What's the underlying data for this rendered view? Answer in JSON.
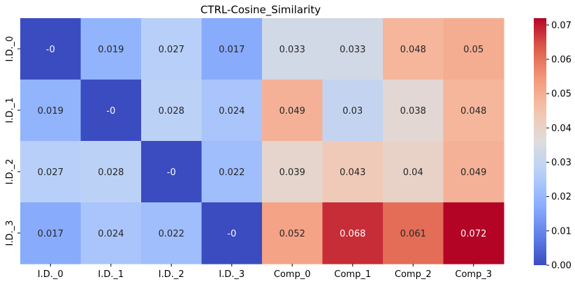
{
  "chart_data": {
    "type": "heatmap",
    "title": "CTRL-Cosine_Similarity",
    "xlabel": "",
    "ylabel": "",
    "x_categories": [
      "I.D._0",
      "I.D._1",
      "I.D._2",
      "I.D._3",
      "Comp_0",
      "Comp_1",
      "Comp_2",
      "Comp_3"
    ],
    "y_categories": [
      "I.D._0",
      "I.D._1",
      "I.D._2",
      "I.D._3"
    ],
    "values": [
      [
        0.0,
        0.019,
        0.027,
        0.017,
        0.033,
        0.033,
        0.048,
        0.05
      ],
      [
        0.019,
        0.0,
        0.028,
        0.024,
        0.049,
        0.03,
        0.038,
        0.048
      ],
      [
        0.027,
        0.028,
        0.0,
        0.022,
        0.039,
        0.043,
        0.04,
        0.049
      ],
      [
        0.017,
        0.024,
        0.022,
        0.0,
        0.052,
        0.068,
        0.061,
        0.072
      ]
    ],
    "labels": [
      [
        "-0",
        "0.019",
        "0.027",
        "0.017",
        "0.033",
        "0.033",
        "0.048",
        "0.05"
      ],
      [
        "0.019",
        "-0",
        "0.028",
        "0.024",
        "0.049",
        "0.03",
        "0.038",
        "0.048"
      ],
      [
        "0.027",
        "0.028",
        "-0",
        "0.022",
        "0.039",
        "0.043",
        "0.04",
        "0.049"
      ],
      [
        "0.017",
        "0.024",
        "0.022",
        "-0",
        "0.052",
        "0.068",
        "0.061",
        "0.072"
      ]
    ],
    "colormap": "coolwarm",
    "vmin": 0.0,
    "vmax": 0.072,
    "colorbar": {
      "ticks": [
        0.0,
        0.01,
        0.02,
        0.03,
        0.04,
        0.05,
        0.06,
        0.07
      ],
      "tick_labels": [
        "0.00",
        "0.01",
        "0.02",
        "0.03",
        "0.04",
        "0.05",
        "0.06",
        "0.07"
      ]
    }
  }
}
